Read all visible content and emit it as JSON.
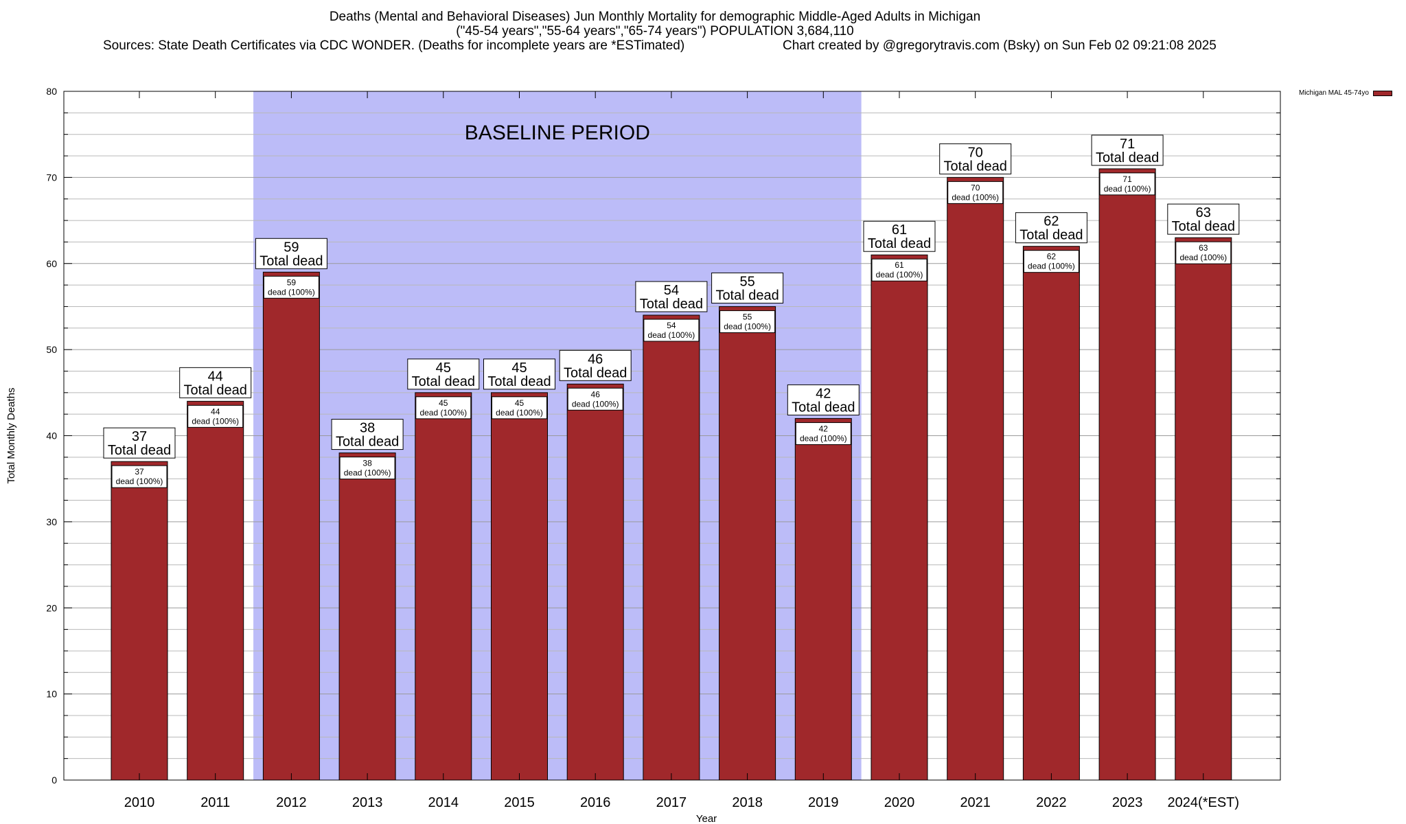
{
  "title": {
    "line1": "Deaths (Mental and Behavioral Diseases) Jun Monthly Mortality for demographic Middle-Aged Adults in Michigan",
    "line2": "(\"45-54 years\",\"55-64 years\",\"65-74 years\") POPULATION 3,684,110",
    "line3": "Sources: State Death Certificates via CDC WONDER. (Deaths for incomplete years are *ESTimated)",
    "line4": "Chart created by @gregorytravis.com (Bsky) on Sun Feb 02 09:21:08 2025"
  },
  "legend": {
    "label": "Michigan MAL 45-74yo"
  },
  "colors": {
    "bar": "#a0282b",
    "baseline": "#bcbcf8",
    "grid": "#b8b8b8"
  },
  "chart_data": {
    "type": "bar",
    "categories": [
      "2010",
      "2011",
      "2012",
      "2013",
      "2014",
      "2015",
      "2016",
      "2017",
      "2018",
      "2019",
      "2020",
      "2021",
      "2022",
      "2023",
      "2024(*EST)"
    ],
    "series": [
      {
        "name": "Michigan MAL 45-74yo",
        "values": [
          37,
          44,
          59,
          38,
          45,
          45,
          46,
          54,
          55,
          42,
          61,
          70,
          62,
          71,
          63
        ]
      }
    ],
    "xlabel": "Year",
    "ylabel": "Total Monthly Deaths",
    "ylim": [
      0,
      80
    ],
    "yticks": [
      0,
      10,
      20,
      30,
      40,
      50,
      60,
      70,
      80
    ],
    "grid": true,
    "baseline_period": {
      "label": "BASELINE PERIOD",
      "from": "2012",
      "to": "2019"
    },
    "top_label_suffix": "Total dead",
    "inner_label_suffix": "dead (100%)",
    "legend_position": "top-right"
  }
}
